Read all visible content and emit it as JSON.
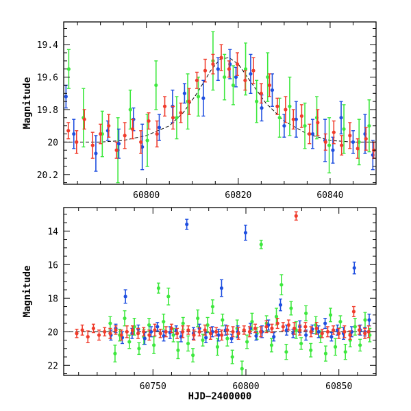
{
  "colors": {
    "blue": "#1f4fe0",
    "green": "#3ee83e",
    "red": "#f03c2c",
    "model": "#000000",
    "axes": "#000000"
  },
  "chart_data": [
    {
      "type": "scatter",
      "panel": "top",
      "title": "",
      "xlabel": "",
      "ylabel": "Magnitude",
      "xlim": [
        60782,
        60850
      ],
      "ylim": [
        20.26,
        19.26
      ],
      "y_inverted": true,
      "grid": false,
      "legend": "none",
      "xticks_major": [
        60800,
        60820,
        60840
      ],
      "xtick_labels": [
        "60800",
        "60820",
        "60840"
      ],
      "yticks_major": [
        19.4,
        19.6,
        19.8,
        20.0,
        20.2
      ],
      "ytick_labels": [
        "19.4",
        "19.6",
        "19.8",
        "20",
        "20.2"
      ],
      "model_curve": {
        "x": [
          60782,
          60790,
          60795,
          60800,
          60805,
          60808,
          60811,
          60814,
          60816,
          60818,
          60820,
          60823,
          60826,
          60830,
          60835,
          60840,
          60845,
          60850
        ],
        "y": [
          20.0,
          20.0,
          19.99,
          19.96,
          19.9,
          19.82,
          19.7,
          19.56,
          19.49,
          19.48,
          19.52,
          19.64,
          19.76,
          19.87,
          19.95,
          19.99,
          20.0,
          20.0
        ]
      },
      "series": [
        {
          "color": "blue",
          "x": [
            60782.5,
            60784.2,
            60789.0,
            60791.6,
            60794.0,
            60797.2,
            60799.1,
            60802.8,
            60805.7,
            60808.3,
            60812.4,
            60815.6,
            60818.2,
            60819.5,
            60822.7,
            60825.1,
            60827.4,
            60830.0,
            60832.6,
            60836.2,
            60838.9,
            60840.6,
            60842.4,
            60845.0,
            60847.6,
            60849.3
          ],
          "y": [
            19.72,
            19.95,
            20.07,
            19.93,
            20.01,
            19.86,
            20.03,
            19.91,
            19.78,
            19.7,
            19.73,
            19.55,
            19.52,
            19.6,
            19.58,
            19.79,
            19.68,
            19.9,
            19.86,
            19.95,
            19.99,
            20.05,
            19.85,
            20.0,
            19.95,
            20.08
          ],
          "err": [
            0.07,
            0.09,
            0.11,
            0.06,
            0.09,
            0.07,
            0.14,
            0.08,
            0.1,
            0.06,
            0.11,
            0.07,
            0.09,
            0.06,
            0.12,
            0.08,
            0.1,
            0.07,
            0.11,
            0.09,
            0.13,
            0.08,
            0.1,
            0.07,
            0.12,
            0.09
          ]
        },
        {
          "color": "green",
          "x": [
            60783.1,
            60786.3,
            60790.4,
            60793.8,
            60796.5,
            60800.2,
            60802.1,
            60806.6,
            60809.0,
            60811.3,
            60814.5,
            60817.0,
            60818.9,
            60821.6,
            60824.0,
            60826.4,
            60829.0,
            60831.2,
            60834.5,
            60837.1,
            60839.8,
            60843.0,
            60846.3,
            60848.5
          ],
          "y": [
            19.55,
            19.85,
            19.95,
            20.05,
            19.8,
            19.99,
            19.65,
            19.85,
            19.75,
            19.72,
            19.5,
            19.6,
            19.65,
            19.55,
            19.75,
            19.6,
            19.85,
            19.78,
            19.9,
            19.85,
            20.02,
            19.92,
            20.0,
            19.9
          ],
          "err": [
            0.12,
            0.18,
            0.14,
            0.2,
            0.12,
            0.16,
            0.15,
            0.13,
            0.17,
            0.12,
            0.18,
            0.14,
            0.12,
            0.16,
            0.13,
            0.15,
            0.12,
            0.18,
            0.14,
            0.13,
            0.17,
            0.15,
            0.14,
            0.16
          ]
        },
        {
          "color": "red",
          "x": [
            60783.0,
            60784.8,
            60786.5,
            60788.3,
            60790.0,
            60791.8,
            60793.5,
            60795.3,
            60797.0,
            60798.8,
            60800.5,
            60802.3,
            60804.0,
            60805.8,
            60807.5,
            60809.3,
            60811.0,
            60812.8,
            60814.5,
            60816.3,
            60818.0,
            60819.8,
            60821.5,
            60823.3,
            60825.0,
            60826.8,
            60828.5,
            60830.3,
            60832.0,
            60833.8,
            60835.5,
            60837.3,
            60839.0,
            60840.8,
            60842.5,
            60844.3,
            60846.0,
            60847.8,
            60849.5
          ],
          "y": [
            19.93,
            20.0,
            19.86,
            20.02,
            19.95,
            19.9,
            20.05,
            19.96,
            19.92,
            20.0,
            19.87,
            19.95,
            19.78,
            19.85,
            19.82,
            19.75,
            19.62,
            19.56,
            19.52,
            19.48,
            19.55,
            19.52,
            19.62,
            19.56,
            19.7,
            19.65,
            19.78,
            19.8,
            19.86,
            19.84,
            19.95,
            19.88,
            20.0,
            19.94,
            20.02,
            19.96,
            20.04,
            19.98,
            20.05
          ],
          "err": [
            0.05,
            0.07,
            0.06,
            0.08,
            0.06,
            0.07,
            0.05,
            0.08,
            0.06,
            0.07,
            0.05,
            0.08,
            0.06,
            0.07,
            0.06,
            0.08,
            0.05,
            0.07,
            0.06,
            0.08,
            0.05,
            0.07,
            0.06,
            0.08,
            0.06,
            0.07,
            0.05,
            0.08,
            0.06,
            0.07,
            0.06,
            0.08,
            0.05,
            0.07,
            0.06,
            0.08,
            0.06,
            0.07,
            0.05
          ]
        }
      ]
    },
    {
      "type": "scatter",
      "panel": "bottom",
      "title": "",
      "xlabel": "HJD−2400000",
      "ylabel": "Magnitude",
      "xlim": [
        60702,
        60870
      ],
      "ylim": [
        22.6,
        12.6
      ],
      "y_inverted": true,
      "grid": false,
      "legend": "none",
      "xticks_major": [
        60750,
        60800,
        60850
      ],
      "xtick_labels": [
        "60750",
        "60800",
        "60850"
      ],
      "yticks_major": [
        14,
        16,
        18,
        20,
        22
      ],
      "ytick_labels": [
        "14",
        "16",
        "18",
        "20",
        "22"
      ],
      "model_curve": {
        "x": [
          60705,
          60870
        ],
        "y": [
          20.0,
          20.0
        ]
      },
      "series": [
        {
          "color": "blue",
          "x": [
            60727.4,
            60730.0,
            60733.5,
            60735.2,
            60738.8,
            60742.1,
            60745.6,
            60749.0,
            60752.4,
            60755.8,
            60759.2,
            60762.5,
            60765.1,
            60768.2,
            60771.8,
            60775.0,
            60778.5,
            60782.0,
            60785.3,
            60786.9,
            60789.1,
            60792.3,
            60795.6,
            60799.8,
            60802.4,
            60805.5,
            60808.7,
            60812.1,
            60815.0,
            60818.6,
            60821.9,
            60825.4,
            60829.0,
            60832.3,
            60835.7,
            60839.1,
            60842.6,
            60846.0,
            60849.2,
            60852.5,
            60856.9,
            60858.3,
            60861.5,
            60864.0,
            60866.3
          ],
          "y": [
            20.2,
            19.8,
            20.35,
            17.9,
            20.1,
            19.85,
            20.4,
            20.0,
            19.7,
            20.25,
            20.05,
            19.9,
            20.3,
            13.6,
            20.1,
            19.8,
            20.35,
            20.0,
            20.2,
            17.4,
            19.9,
            20.4,
            20.0,
            14.1,
            19.8,
            20.25,
            20.0,
            19.6,
            20.3,
            18.4,
            19.9,
            20.1,
            19.7,
            20.2,
            19.85,
            20.0,
            19.5,
            20.3,
            19.9,
            20.1,
            20.0,
            16.2,
            19.9,
            20.0,
            19.3
          ],
          "err": [
            0.3,
            0.25,
            0.35,
            0.4,
            0.3,
            0.25,
            0.35,
            0.3,
            0.25,
            0.3,
            0.35,
            0.25,
            0.3,
            0.3,
            0.35,
            0.25,
            0.3,
            0.3,
            0.35,
            0.5,
            0.3,
            0.25,
            0.35,
            0.45,
            0.3,
            0.25,
            0.35,
            0.3,
            0.25,
            0.35,
            0.3,
            0.25,
            0.35,
            0.3,
            0.25,
            0.35,
            0.3,
            0.25,
            0.3,
            0.35,
            0.3,
            0.35,
            0.3,
            0.25,
            0.35
          ]
        },
        {
          "color": "green",
          "x": [
            60727.0,
            60729.6,
            60732.1,
            60734.8,
            60737.3,
            60740.0,
            60742.5,
            60745.1,
            60747.9,
            60750.5,
            60753.0,
            60755.7,
            60758.3,
            60761.0,
            60763.5,
            60766.2,
            60768.9,
            60771.5,
            60774.1,
            60776.8,
            60779.4,
            60782.1,
            60784.7,
            60787.4,
            60790.0,
            60792.7,
            60795.3,
            60797.9,
            60800.6,
            60803.3,
            60805.9,
            60808.2,
            60811.1,
            60813.8,
            60816.4,
            60819.1,
            60821.7,
            60824.3,
            60827.0,
            60829.7,
            60832.3,
            60834.9,
            60837.6,
            60840.2,
            60842.9,
            60845.5,
            60848.1,
            60850.8,
            60853.5,
            60856.1,
            60858.7,
            60861.4,
            60864.1,
            60866.6
          ],
          "y": [
            19.5,
            21.3,
            20.2,
            19.2,
            20.6,
            19.7,
            21.0,
            20.3,
            19.6,
            20.8,
            17.4,
            19.4,
            17.9,
            20.2,
            21.1,
            19.5,
            20.7,
            21.4,
            19.2,
            20.5,
            19.6,
            18.5,
            20.9,
            19.3,
            20.4,
            21.5,
            19.8,
            22.2,
            20.6,
            19.4,
            20.1,
            14.8,
            19.5,
            20.8,
            19.1,
            17.2,
            21.2,
            18.6,
            19.9,
            20.7,
            18.9,
            21.1,
            19.6,
            20.3,
            21.3,
            19.0,
            20.9,
            19.4,
            21.2,
            20.5,
            19.7,
            20.8,
            19.3,
            20.2
          ],
          "err": [
            0.4,
            0.5,
            0.35,
            0.45,
            0.4,
            0.5,
            0.35,
            0.45,
            0.4,
            0.5,
            0.3,
            0.45,
            0.5,
            0.4,
            0.5,
            0.35,
            0.45,
            0.4,
            0.5,
            0.35,
            0.45,
            0.4,
            0.5,
            0.35,
            0.45,
            0.4,
            0.5,
            0.45,
            0.4,
            0.5,
            0.35,
            0.25,
            0.45,
            0.4,
            0.5,
            0.6,
            0.45,
            0.4,
            0.5,
            0.35,
            0.45,
            0.4,
            0.5,
            0.35,
            0.45,
            0.4,
            0.5,
            0.35,
            0.45,
            0.4,
            0.5,
            0.35,
            0.45,
            0.4
          ]
        },
        {
          "color": "red",
          "x": [
            60709,
            60712,
            60715,
            60718,
            60721,
            60724,
            60727,
            60730,
            60733,
            60736,
            60739,
            60742,
            60745,
            60748,
            60751,
            60754,
            60757,
            60760,
            60763,
            60766,
            60769,
            60772,
            60775,
            60778,
            60781,
            60784,
            60787,
            60790,
            60793,
            60796,
            60799,
            60802,
            60805,
            60808,
            60811,
            60814,
            60817,
            60820,
            60823,
            60826,
            60827,
            60829,
            60832,
            60835,
            60838,
            60841,
            60844,
            60847,
            60850,
            60853,
            60856,
            60858,
            60861,
            60864,
            60866
          ],
          "y": [
            20.1,
            19.9,
            20.3,
            19.8,
            20.2,
            20.0,
            20.1,
            19.9,
            20.2,
            20.0,
            19.9,
            20.1,
            20.0,
            20.2,
            19.9,
            20.1,
            20.0,
            19.8,
            20.1,
            20.0,
            19.9,
            20.2,
            20.0,
            19.9,
            20.1,
            20.0,
            20.2,
            19.9,
            20.0,
            20.1,
            19.9,
            20.0,
            19.8,
            20.0,
            19.7,
            19.8,
            19.5,
            19.7,
            19.6,
            19.8,
            13.1,
            19.9,
            19.7,
            20.0,
            19.8,
            20.1,
            20.0,
            19.9,
            20.1,
            20.0,
            20.2,
            18.8,
            19.9,
            20.1,
            20.0
          ],
          "err": [
            0.25,
            0.3,
            0.35,
            0.25,
            0.3,
            0.25,
            0.3,
            0.25,
            0.3,
            0.35,
            0.25,
            0.3,
            0.25,
            0.3,
            0.35,
            0.25,
            0.3,
            0.25,
            0.3,
            0.35,
            0.25,
            0.3,
            0.25,
            0.3,
            0.35,
            0.25,
            0.3,
            0.25,
            0.3,
            0.35,
            0.25,
            0.3,
            0.25,
            0.3,
            0.35,
            0.25,
            0.3,
            0.25,
            0.3,
            0.35,
            0.25,
            0.3,
            0.25,
            0.3,
            0.35,
            0.25,
            0.3,
            0.25,
            0.3,
            0.35,
            0.25,
            0.3,
            0.25,
            0.3,
            0.35
          ]
        }
      ]
    }
  ]
}
